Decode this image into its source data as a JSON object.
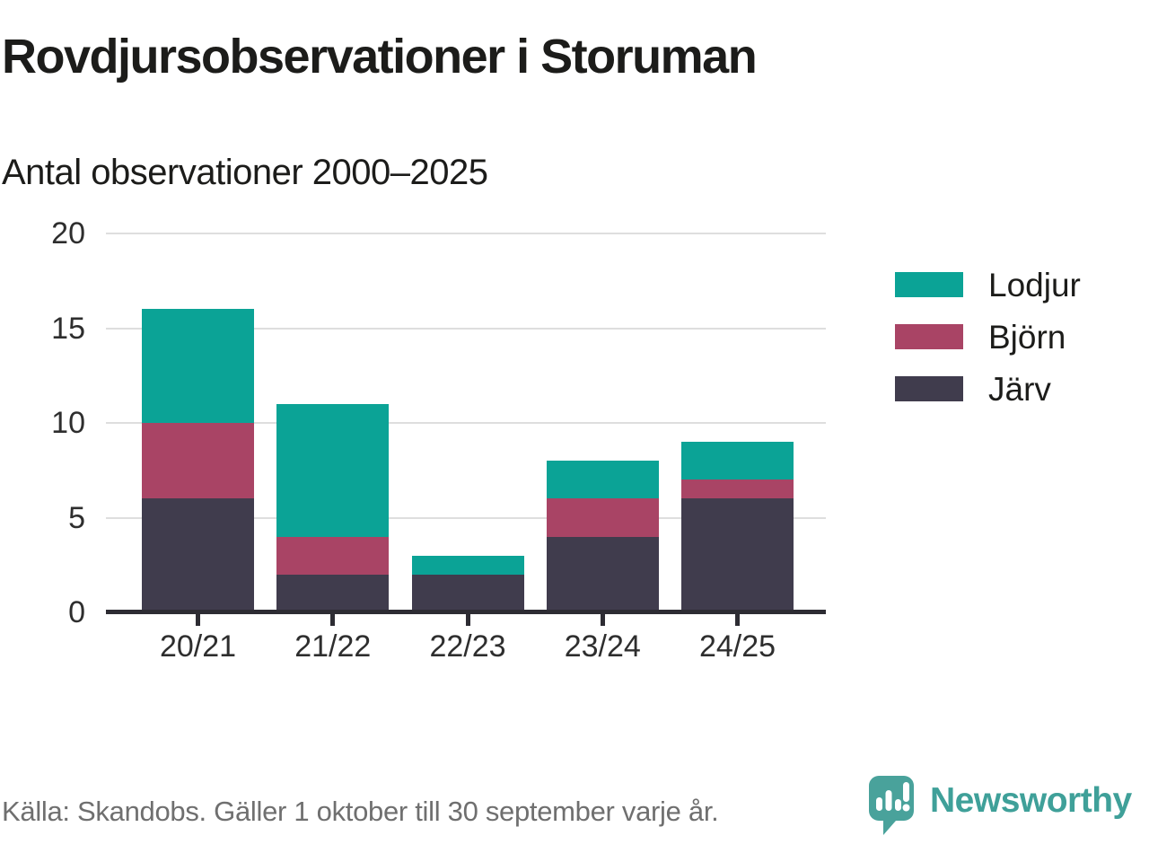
{
  "header": {
    "title": "Rovdjursobservationer i Storuman",
    "subtitle": "Antal observationer 2000–2025"
  },
  "chart_data": {
    "type": "bar",
    "stacked": true,
    "title": "Rovdjursobservationer i Storuman",
    "subtitle": "Antal observationer 2000–2025",
    "categories": [
      "20/21",
      "21/22",
      "22/23",
      "23/24",
      "24/25"
    ],
    "series": [
      {
        "name": "Järv",
        "color": "#403c4d",
        "values": [
          6,
          2,
          2,
          4,
          6
        ]
      },
      {
        "name": "Björn",
        "color": "#a94465",
        "values": [
          4,
          2,
          0,
          2,
          1
        ]
      },
      {
        "name": "Lodjur",
        "color": "#0ba396",
        "values": [
          6,
          7,
          1,
          2,
          2
        ]
      }
    ],
    "stack_totals": [
      16,
      11,
      3,
      8,
      9
    ],
    "xlabel": "",
    "ylabel": "",
    "yticks": [
      0,
      5,
      10,
      15,
      20
    ],
    "ylim": [
      0,
      20
    ],
    "grid": true,
    "legend_position": "right",
    "legend_order": [
      "Lodjur",
      "Björn",
      "Järv"
    ]
  },
  "footer": {
    "source": "Källa: Skandobs. Gäller 1 oktober till 30 september varje år.",
    "brand": "Newsworthy"
  },
  "colors": {
    "lodjur": "#0ba396",
    "bjorn": "#a94465",
    "jarv": "#403c4d",
    "axis": "#2d2c33",
    "gridline": "#dedede",
    "text": "#1c1c1a",
    "muted_text": "#6f6f6f",
    "brand_teal": "#3fa099",
    "logo_teal": "#49a29b"
  }
}
